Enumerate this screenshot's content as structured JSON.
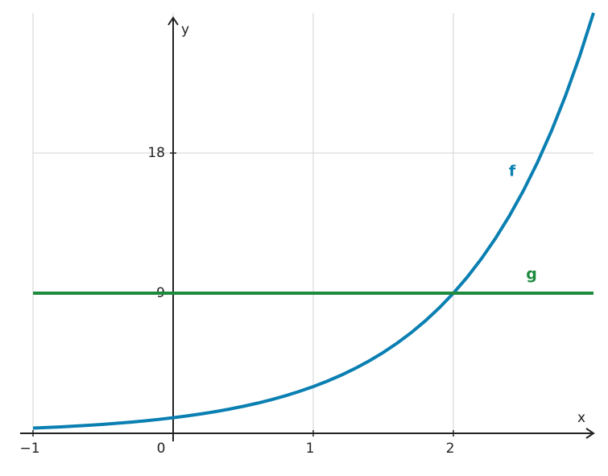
{
  "chart_data": {
    "type": "line",
    "x_label": "x",
    "y_label": "y",
    "xlim": [
      -1,
      3
    ],
    "ylim": [
      0,
      27
    ],
    "xticks": [
      {
        "value": -1,
        "label": "−1"
      },
      0,
      1,
      2
    ],
    "yticks": [
      9,
      18
    ],
    "grid": true,
    "series": [
      {
        "name": "f",
        "color": "#0a7fb2",
        "x": [
          -1,
          -0.9,
          -0.8,
          -0.7,
          -0.6,
          -0.5,
          -0.4,
          -0.3,
          -0.2,
          -0.1,
          0,
          0.1,
          0.2,
          0.3,
          0.4,
          0.5,
          0.6,
          0.7,
          0.8,
          0.9,
          1,
          1.1,
          1.2,
          1.3,
          1.4,
          1.5,
          1.6,
          1.7,
          1.8,
          1.9,
          2,
          2.1,
          2.2,
          2.3,
          2.4,
          2.5,
          2.6,
          2.7,
          2.8,
          2.9,
          3
        ],
        "values": [
          0.333,
          0.372,
          0.415,
          0.463,
          0.517,
          0.577,
          0.644,
          0.719,
          0.803,
          0.896,
          1,
          1.116,
          1.246,
          1.39,
          1.552,
          1.732,
          1.933,
          2.158,
          2.408,
          2.688,
          3,
          3.348,
          3.737,
          4.171,
          4.656,
          5.196,
          5.8,
          6.473,
          7.225,
          8.064,
          9,
          10.045,
          11.212,
          12.514,
          13.967,
          15.588,
          17.399,
          19.419,
          21.674,
          24.191,
          27
        ]
      },
      {
        "name": "g",
        "color": "#1e8a3e",
        "x": [
          -1,
          3
        ],
        "values": [
          9,
          9
        ]
      }
    ]
  }
}
